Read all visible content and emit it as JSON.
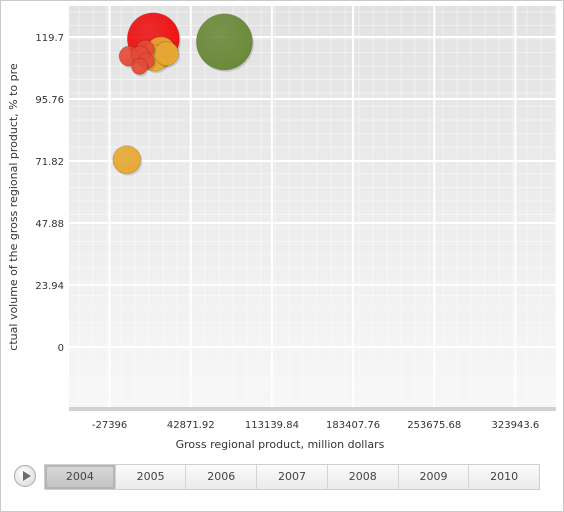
{
  "chart_data": {
    "type": "scatter",
    "subtype": "bubble",
    "xlabel": "Gross regional product, million dollars",
    "ylabel": "ctual volume of the gross regional product, % to pre",
    "xlim": [
      -62530,
      359078
    ],
    "ylim": [
      -23.94,
      131.67
    ],
    "x_ticks": [
      "-27396",
      "42871.92",
      "113139.84",
      "183407.76",
      "253675.68",
      "323943.6"
    ],
    "y_ticks": [
      "0",
      "23.94",
      "47.88",
      "71.82",
      "95.76",
      "119.7"
    ],
    "grid": true,
    "points": [
      {
        "x": 10500,
        "y": 119.0,
        "size": 26,
        "color": "#f01010"
      },
      {
        "x": -10500,
        "y": 112.3,
        "size": 10,
        "color": "#e84a36"
      },
      {
        "x": 12000,
        "y": 111.5,
        "size": 13,
        "color": "#e8a933"
      },
      {
        "x": 17000,
        "y": 114.0,
        "size": 15,
        "color": "#e8a933"
      },
      {
        "x": 22000,
        "y": 113.3,
        "size": 12,
        "color": "#e8a933"
      },
      {
        "x": 3500,
        "y": 115.0,
        "size": 9,
        "color": "#e84a36"
      },
      {
        "x": -1000,
        "y": 112.8,
        "size": 9,
        "color": "#e84a36"
      },
      {
        "x": 4500,
        "y": 110.5,
        "size": 8,
        "color": "#e84a36"
      },
      {
        "x": -1500,
        "y": 108.3,
        "size": 8,
        "color": "#e84a36"
      },
      {
        "x": -12500,
        "y": 72.3,
        "size": 14,
        "color": "#e8a933"
      },
      {
        "x": 72000,
        "y": 117.8,
        "size": 28,
        "color": "#6a8a38"
      }
    ]
  },
  "timeline": {
    "years": [
      "2004",
      "2005",
      "2006",
      "2007",
      "2008",
      "2009",
      "2010"
    ],
    "selected": "2004"
  }
}
